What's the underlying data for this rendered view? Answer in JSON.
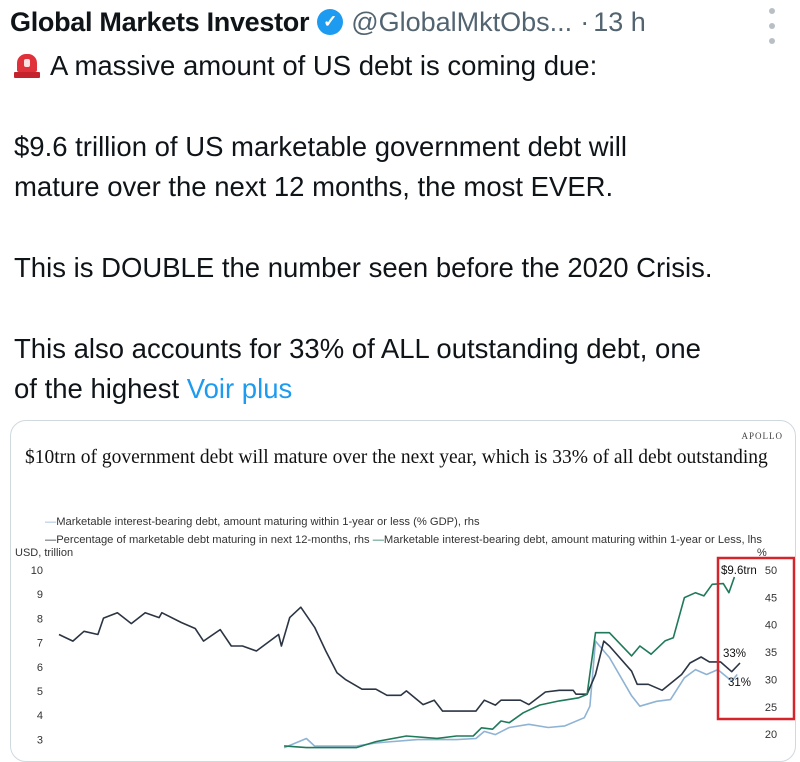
{
  "tweet": {
    "author_name": "Global Markets Investor",
    "verified_icon": "verified-badge-icon",
    "handle": "@GlobalMktObs...",
    "separator": "·",
    "time": "13 h",
    "lines": [
      "A massive amount of US debt is coming due:",
      "$9.6 trillion of US marketable government debt will",
      "mature over the next 12 months, the most EVER.",
      "This is DOUBLE the number seen before the 2020 Crisis.",
      "This also accounts for 33% of ALL outstanding debt, one",
      "of the highest"
    ],
    "see_more": "Voir plus",
    "leading_emoji": "police-siren-icon",
    "accent_color": "#1d9bf0"
  },
  "chart_data": {
    "type": "line",
    "source_logo": "APOLLO",
    "title": "$10trn of government debt will mature over the next year, which is 33% of all debt outstanding",
    "ylabel_left": "USD, trillion",
    "ylabel_right": "%",
    "ylim_left": [
      3,
      10
    ],
    "ylim_right": [
      20,
      50
    ],
    "yticks_left": [
      "10",
      "9",
      "8",
      "7",
      "6",
      "5",
      "4",
      "3"
    ],
    "yticks_right": [
      "50",
      "45",
      "40",
      "35",
      "30",
      "25",
      "20"
    ],
    "grid": false,
    "legend_position": "top",
    "annotations": [
      "$9.6trn",
      "33%",
      "31%"
    ],
    "highlight_box_color": "#d6242b",
    "series": [
      {
        "name": "Marketable interest-bearing debt, amount maturing within 1-year or less (% GDP), rhs",
        "axis": "right",
        "color": "#8fb3d4",
        "points": [
          [
            2008.1,
            17.5
          ],
          [
            2008.9,
            19.2
          ],
          [
            2009.2,
            17.8
          ],
          [
            2010.7,
            17.8
          ],
          [
            2011.4,
            18.4
          ],
          [
            2012.9,
            19.0
          ],
          [
            2014.3,
            19.0
          ],
          [
            2015.0,
            19.2
          ],
          [
            2015.3,
            20.5
          ],
          [
            2015.7,
            19.9
          ],
          [
            2016.2,
            21.2
          ],
          [
            2016.9,
            21.8
          ],
          [
            2017.6,
            21.2
          ],
          [
            2018.2,
            21.5
          ],
          [
            2018.9,
            23.0
          ],
          [
            2019.1,
            25.1
          ],
          [
            2019.3,
            37.0
          ],
          [
            2019.6,
            35.2
          ],
          [
            2019.8,
            34.0
          ],
          [
            2020.6,
            27.0
          ],
          [
            2020.9,
            25.1
          ],
          [
            2021.5,
            26.0
          ],
          [
            2022.0,
            26.3
          ],
          [
            2022.5,
            30.3
          ],
          [
            2022.9,
            31.8
          ],
          [
            2023.3,
            30.9
          ],
          [
            2023.7,
            31.8
          ],
          [
            2024.2,
            29.7
          ],
          [
            2024.4,
            30.9
          ]
        ]
      },
      {
        "name": "Percentage of marketable debt maturing in next 12-months, rhs",
        "axis": "right",
        "color": "#2b3543",
        "points": [
          [
            2000.0,
            38.2
          ],
          [
            2000.5,
            37.0
          ],
          [
            2000.9,
            38.8
          ],
          [
            2001.4,
            38.2
          ],
          [
            2001.6,
            41.2
          ],
          [
            2002.1,
            42.2
          ],
          [
            2002.6,
            40.2
          ],
          [
            2003.1,
            42.2
          ],
          [
            2003.6,
            41.3
          ],
          [
            2003.7,
            42.2
          ],
          [
            2004.4,
            40.4
          ],
          [
            2004.9,
            39.3
          ],
          [
            2005.2,
            37.0
          ],
          [
            2005.8,
            39.1
          ],
          [
            2006.2,
            36.1
          ],
          [
            2006.6,
            36.1
          ],
          [
            2007.1,
            35.2
          ],
          [
            2007.9,
            38.2
          ],
          [
            2008.0,
            36.1
          ],
          [
            2008.3,
            41.3
          ],
          [
            2008.7,
            43.2
          ],
          [
            2009.2,
            39.5
          ],
          [
            2009.6,
            35.2
          ],
          [
            2010.0,
            31.2
          ],
          [
            2010.3,
            30.0
          ],
          [
            2010.9,
            28.2
          ],
          [
            2011.4,
            28.2
          ],
          [
            2011.8,
            27.1
          ],
          [
            2012.3,
            27.1
          ],
          [
            2012.5,
            27.9
          ],
          [
            2013.1,
            25.4
          ],
          [
            2013.5,
            26.2
          ],
          [
            2013.8,
            24.2
          ],
          [
            2015.0,
            24.2
          ],
          [
            2015.3,
            26.2
          ],
          [
            2015.7,
            25.3
          ],
          [
            2015.9,
            26.2
          ],
          [
            2016.6,
            26.2
          ],
          [
            2016.9,
            25.4
          ],
          [
            2017.5,
            27.7
          ],
          [
            2018.0,
            28.0
          ],
          [
            2018.5,
            28.0
          ],
          [
            2018.6,
            27.3
          ],
          [
            2019.0,
            27.3
          ],
          [
            2019.3,
            30.9
          ],
          [
            2019.6,
            37.0
          ],
          [
            2019.8,
            36.1
          ],
          [
            2020.6,
            31.5
          ],
          [
            2020.8,
            29.1
          ],
          [
            2021.2,
            29.1
          ],
          [
            2021.7,
            28.0
          ],
          [
            2022.4,
            30.9
          ],
          [
            2022.7,
            33.0
          ],
          [
            2023.1,
            34.1
          ],
          [
            2023.4,
            33.2
          ],
          [
            2023.8,
            33.2
          ],
          [
            2024.2,
            31.4
          ],
          [
            2024.5,
            33.0
          ]
        ]
      },
      {
        "name": "Marketable interest-bearing debt, amount maturing within 1-year or Less, lhs",
        "axis": "left",
        "color": "#1f7a5a",
        "points": [
          [
            2008.1,
            2.73
          ],
          [
            2008.9,
            2.66
          ],
          [
            2009.8,
            2.66
          ],
          [
            2010.7,
            2.66
          ],
          [
            2011.4,
            2.91
          ],
          [
            2012.5,
            3.14
          ],
          [
            2013.6,
            3.04
          ],
          [
            2014.3,
            3.14
          ],
          [
            2014.9,
            3.14
          ],
          [
            2015.2,
            3.48
          ],
          [
            2015.6,
            3.42
          ],
          [
            2015.9,
            3.76
          ],
          [
            2016.2,
            3.69
          ],
          [
            2016.7,
            4.1
          ],
          [
            2017.3,
            4.42
          ],
          [
            2018.0,
            4.59
          ],
          [
            2018.7,
            4.72
          ],
          [
            2019.0,
            4.86
          ],
          [
            2019.3,
            7.41
          ],
          [
            2019.6,
            7.41
          ],
          [
            2019.8,
            7.41
          ],
          [
            2020.6,
            6.45
          ],
          [
            2020.9,
            6.86
          ],
          [
            2021.3,
            6.52
          ],
          [
            2021.8,
            7.07
          ],
          [
            2022.1,
            7.2
          ],
          [
            2022.5,
            8.86
          ],
          [
            2022.9,
            9.06
          ],
          [
            2023.2,
            8.93
          ],
          [
            2023.5,
            9.41
          ],
          [
            2023.9,
            9.44
          ],
          [
            2024.1,
            9.06
          ],
          [
            2024.3,
            9.71
          ]
        ]
      }
    ]
  }
}
